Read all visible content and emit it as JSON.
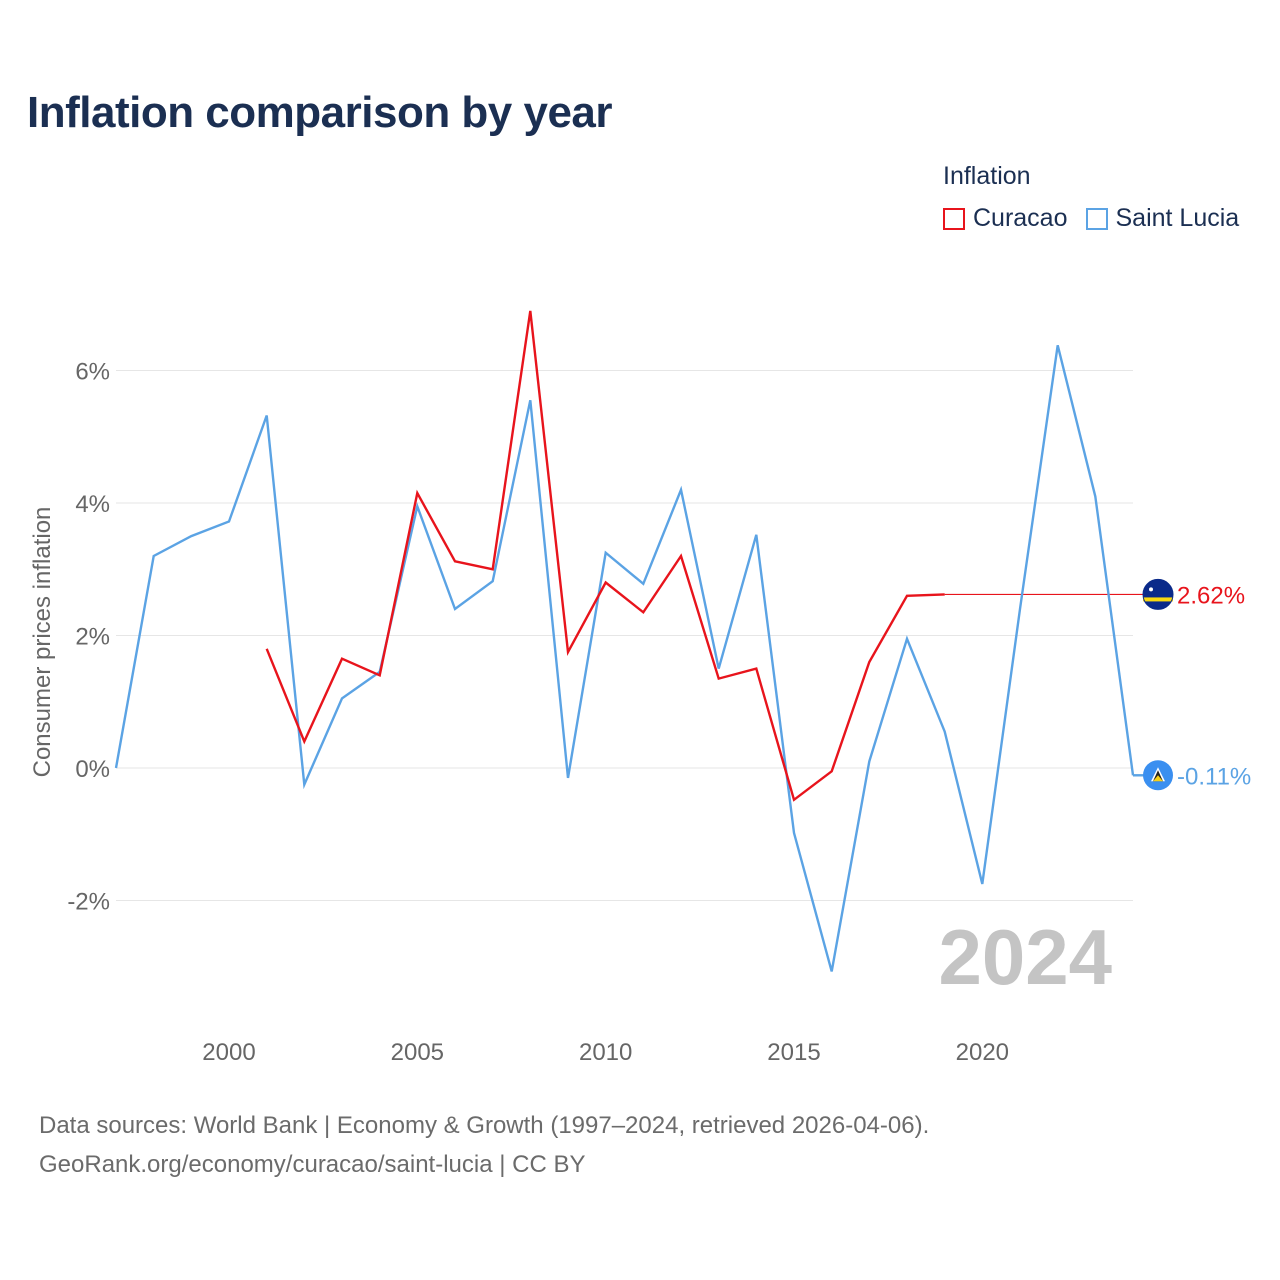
{
  "title": "Inflation comparison by year",
  "legend": {
    "title": "Inflation",
    "items": [
      {
        "label": "Curacao",
        "color": "#e8141c"
      },
      {
        "label": "Saint Lucia",
        "color": "#5ba3e4"
      }
    ]
  },
  "footer": {
    "line1": "Data sources: World Bank | Economy & Growth (1997–2024, retrieved 2026-04-06).",
    "line2": "GeoRank.org/economy/curacao/saint-lucia | CC BY"
  },
  "chart_data": {
    "type": "line",
    "title": "Inflation comparison by year",
    "xlabel": "",
    "ylabel": "Consumer prices inflation",
    "xlim": [
      1997,
      2024
    ],
    "ylim": [
      -3.5,
      7
    ],
    "x_ticks": [
      2000,
      2005,
      2010,
      2015,
      2020
    ],
    "y_ticks": [
      6,
      4,
      2,
      0,
      -2
    ],
    "y_tick_labels": [
      "6%",
      "4%",
      "2%",
      "0%",
      "-2%"
    ],
    "grid": true,
    "year_watermark": "2024",
    "series": [
      {
        "name": "Curacao",
        "color": "#e8141c",
        "x": [
          2001,
          2002,
          2003,
          2004,
          2005,
          2006,
          2007,
          2008,
          2009,
          2010,
          2011,
          2012,
          2013,
          2014,
          2015,
          2016,
          2017,
          2018,
          2019
        ],
        "values": [
          1.8,
          0.4,
          1.65,
          1.4,
          4.15,
          3.12,
          3.0,
          6.9,
          1.75,
          2.8,
          2.35,
          3.2,
          1.35,
          1.5,
          -0.48,
          -0.05,
          1.6,
          2.6,
          2.62
        ],
        "end_label": "2.62%",
        "end_value": 2.62
      },
      {
        "name": "Saint Lucia",
        "color": "#5ba3e4",
        "x": [
          1997,
          1998,
          1999,
          2000,
          2001,
          2002,
          2003,
          2004,
          2005,
          2006,
          2007,
          2008,
          2009,
          2010,
          2011,
          2012,
          2013,
          2014,
          2015,
          2016,
          2017,
          2018,
          2019,
          2020,
          2021,
          2022,
          2023,
          2024
        ],
        "values": [
          0.0,
          3.2,
          3.5,
          3.72,
          5.32,
          -0.25,
          1.05,
          1.45,
          3.95,
          2.4,
          2.82,
          5.55,
          -0.15,
          3.25,
          2.78,
          4.2,
          1.5,
          3.52,
          -0.98,
          -3.07,
          0.1,
          1.95,
          0.55,
          -1.75,
          2.4,
          6.38,
          4.1,
          -0.11
        ],
        "end_label": "-0.11%",
        "end_value": -0.11
      }
    ]
  }
}
